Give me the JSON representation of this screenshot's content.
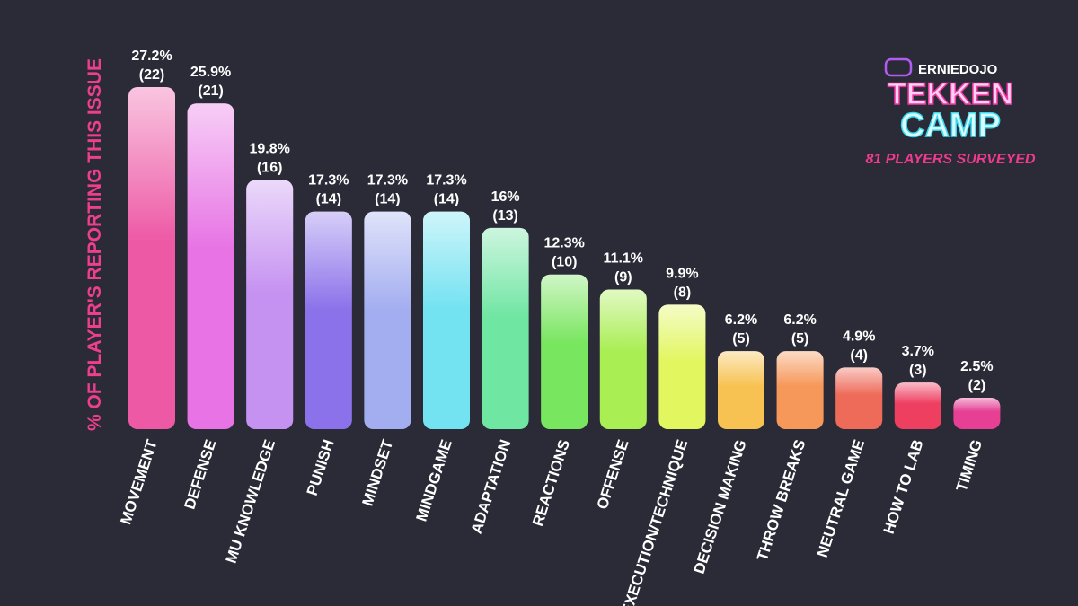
{
  "chart_data": {
    "type": "bar",
    "y_label": "% OF PLAYER'S REPORTING THIS ISSUE",
    "brand": "ERNIEDOJO",
    "logo_title": "TEKKEN",
    "logo_subtitle": "CAMP",
    "subtitle": "81 PLAYERS SURVEYED",
    "categories": [
      "MOVEMENT",
      "DEFENSE",
      "MU KNOWLEDGE",
      "PUNISH",
      "MINDSET",
      "MINDGAME",
      "ADAPTATION",
      "REACTIONS",
      "OFFENSE",
      "EXECUTION/TECHNIQUE",
      "DECISION MAKING",
      "THROW BREAKS",
      "NEUTRAL GAME",
      "HOW TO LAB",
      "TIMING"
    ],
    "values": [
      27.2,
      25.9,
      19.8,
      17.3,
      17.3,
      17.3,
      16,
      12.3,
      11.1,
      9.9,
      6.2,
      6.2,
      4.9,
      3.7,
      2.5
    ],
    "value_labels": [
      "27.2%",
      "25.9%",
      "19.8%",
      "17.3%",
      "17.3%",
      "17.3%",
      "16%",
      "12.3%",
      "11.1%",
      "9.9%",
      "6.2%",
      "6.2%",
      "4.9%",
      "3.7%",
      "2.5%"
    ],
    "counts": [
      22,
      21,
      16,
      14,
      14,
      14,
      13,
      10,
      9,
      8,
      5,
      5,
      4,
      3,
      2
    ],
    "count_labels": [
      "(22)",
      "(21)",
      "(16)",
      "(14)",
      "(14)",
      "(14)",
      "(13)",
      "(10)",
      "(9)",
      "(8)",
      "(5)",
      "(5)",
      "(4)",
      "(3)",
      "(2)"
    ],
    "colors": [
      "#ee5aa6",
      "#e774e4",
      "#c693f2",
      "#8c72ea",
      "#a4aef0",
      "#74e2f2",
      "#6fe6a2",
      "#78e65e",
      "#a9ee52",
      "#e2f660",
      "#f7c252",
      "#f6985a",
      "#ef6a5a",
      "#ef3f62",
      "#e63f94"
    ]
  }
}
